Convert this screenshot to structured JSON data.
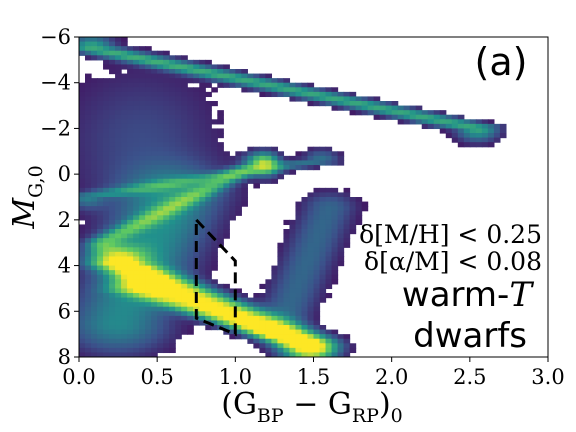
{
  "chart_data": {
    "type": "heatmap",
    "panel_label": "(a)",
    "xlabel_main": "(G",
    "xlabel_sub1": "BP",
    "xlabel_mid": " − G",
    "xlabel_sub2": "RP",
    "xlabel_close": ")",
    "xlabel_sub3": "0",
    "ylabel_main": "M",
    "ylabel_sub": "G,0",
    "xlim": [
      0.0,
      3.0
    ],
    "ylim": [
      8,
      -6
    ],
    "xticks": [
      "0.0",
      "0.5",
      "1.0",
      "1.5",
      "2.0",
      "2.5",
      "3.0"
    ],
    "xtick_values": [
      0.0,
      0.5,
      1.0,
      1.5,
      2.0,
      2.5,
      3.0
    ],
    "yticks": [
      "−6",
      "−4",
      "−2",
      "0",
      "2",
      "4",
      "6",
      "8"
    ],
    "ytick_values": [
      -6,
      -4,
      -2,
      0,
      2,
      4,
      6,
      8
    ],
    "selection_polygon": [
      [
        0.75,
        2.0
      ],
      [
        1.0,
        3.8
      ],
      [
        1.0,
        7.0
      ],
      [
        0.75,
        6.3
      ],
      [
        0.75,
        2.0
      ]
    ],
    "annotations": {
      "line1": "δ[M/H] < 0.25",
      "line2": "δ[α/M] < 0.08",
      "line3_prefix": "warm-",
      "line3_italic": "T",
      "line4": "dwarfs"
    },
    "colormap": [
      "#440154",
      "#3b528b",
      "#21918c",
      "#5ec962",
      "#fde725"
    ]
  }
}
